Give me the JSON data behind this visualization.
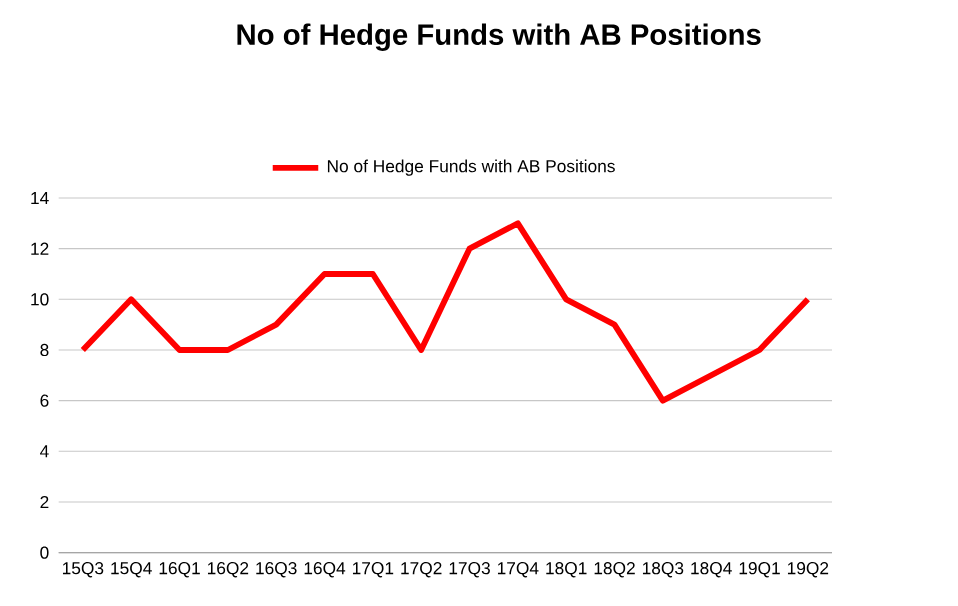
{
  "chart_data": {
    "type": "line",
    "title": "No of Hedge Funds with AB Positions",
    "categories": [
      "15Q3",
      "15Q4",
      "16Q1",
      "16Q2",
      "16Q3",
      "16Q4",
      "17Q1",
      "17Q2",
      "17Q3",
      "17Q4",
      "18Q1",
      "18Q2",
      "18Q3",
      "18Q4",
      "19Q1",
      "19Q2"
    ],
    "series": [
      {
        "name": "No of Hedge Funds with AB Positions",
        "color": "#ff0000",
        "values": [
          8,
          10,
          8,
          8,
          9,
          11,
          11,
          8,
          12,
          13,
          10,
          9,
          6,
          7,
          8,
          10
        ]
      }
    ],
    "ylim": [
      0,
      14
    ],
    "yticks": [
      0,
      2,
      4,
      6,
      8,
      10,
      12,
      14
    ],
    "grid": "y",
    "legend": "top",
    "marker": "none",
    "line_style": "solid"
  }
}
